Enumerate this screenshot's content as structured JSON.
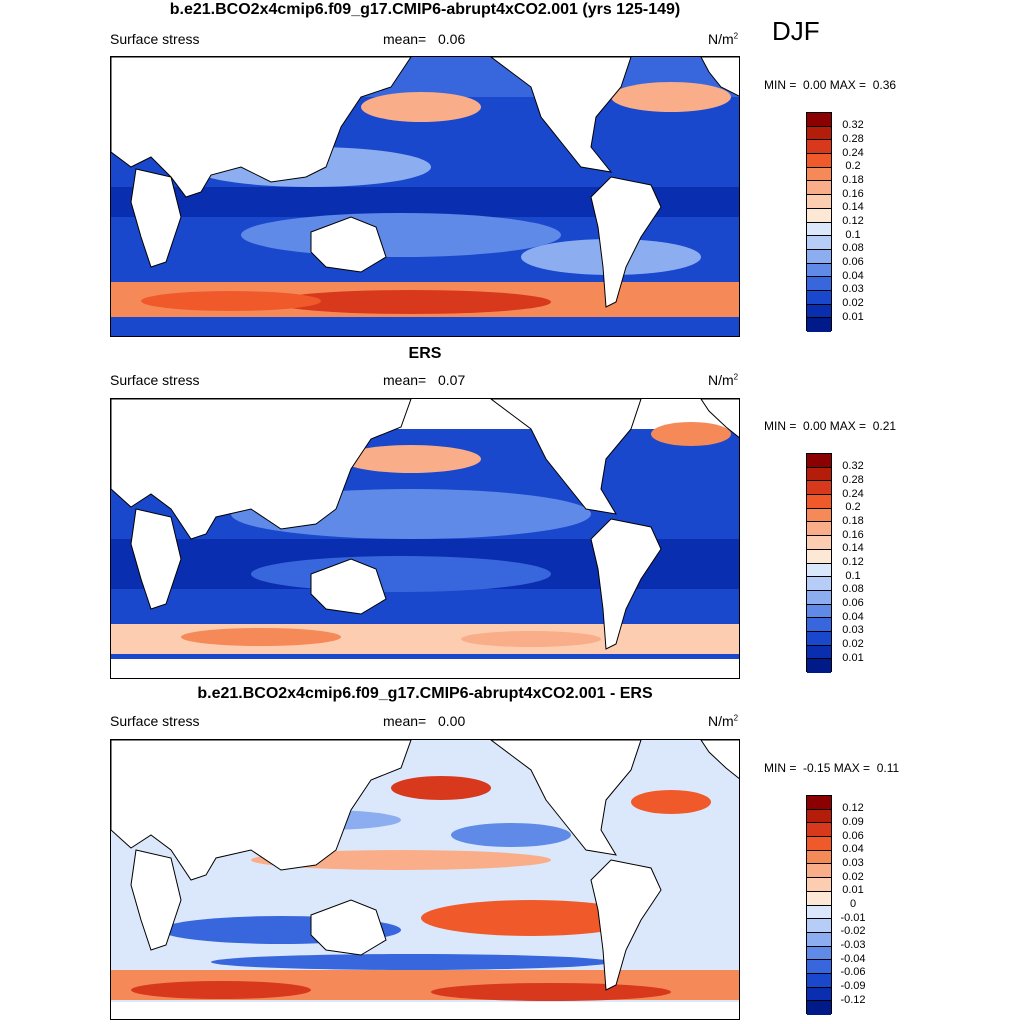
{
  "season": "DJF",
  "panels": [
    {
      "id": "model",
      "title": "b.e21.BCO2x4cmip6.f09_g17.CMIP6-abrupt4xCO2.001 (yrs 125-149)",
      "variable": "Surface stress",
      "mean_label": "mean=",
      "mean_value": "0.06",
      "units": "N/m",
      "units_sup": "2",
      "min_label": "MIN =",
      "min_value": "0.00",
      "max_label": "MAX =",
      "max_value": "0.36",
      "colorbar_labels": [
        "0.32",
        "0.28",
        "0.24",
        "0.2",
        "0.18",
        "0.16",
        "0.14",
        "0.12",
        "0.1",
        "0.08",
        "0.06",
        "0.04",
        "0.03",
        "0.02",
        "0.01"
      ],
      "colorbar_colors": [
        "#8b0000",
        "#b51d0b",
        "#d8391c",
        "#f05a2b",
        "#f58a58",
        "#f9ad88",
        "#fccdb0",
        "#fde8d6",
        "#dbe8fb",
        "#b5cdf7",
        "#8caef0",
        "#5f8ae8",
        "#3867dd",
        "#1a48cc",
        "#0a2eb0",
        "#001a8a"
      ]
    },
    {
      "id": "obs",
      "title": "ERS",
      "variable": "Surface stress",
      "mean_label": "mean=",
      "mean_value": "0.07",
      "units": "N/m",
      "units_sup": "2",
      "min_label": "MIN =",
      "min_value": "0.00",
      "max_label": "MAX =",
      "max_value": "0.21",
      "colorbar_labels": [
        "0.32",
        "0.28",
        "0.24",
        "0.2",
        "0.18",
        "0.16",
        "0.14",
        "0.12",
        "0.1",
        "0.08",
        "0.06",
        "0.04",
        "0.03",
        "0.02",
        "0.01"
      ],
      "colorbar_colors": [
        "#8b0000",
        "#b51d0b",
        "#d8391c",
        "#f05a2b",
        "#f58a58",
        "#f9ad88",
        "#fccdb0",
        "#fde8d6",
        "#dbe8fb",
        "#b5cdf7",
        "#8caef0",
        "#5f8ae8",
        "#3867dd",
        "#1a48cc",
        "#0a2eb0",
        "#001a8a"
      ]
    },
    {
      "id": "diff",
      "title": "b.e21.BCO2x4cmip6.f09_g17.CMIP6-abrupt4xCO2.001 - ERS",
      "variable": "Surface stress",
      "mean_label": "mean=",
      "mean_value": "0.00",
      "units": "N/m",
      "units_sup": "2",
      "min_label": "MIN =",
      "min_value": "-0.15",
      "max_label": "MAX =",
      "max_value": "0.11",
      "colorbar_labels": [
        "0.12",
        "0.09",
        "0.06",
        "0.04",
        "0.03",
        "0.02",
        "0.01",
        "0",
        "-0.01",
        "-0.02",
        "-0.03",
        "-0.04",
        "-0.06",
        "-0.09",
        "-0.12"
      ],
      "colorbar_colors": [
        "#8b0000",
        "#b51d0b",
        "#d8391c",
        "#f05a2b",
        "#f58a58",
        "#f9ad88",
        "#fccdb0",
        "#fde8d6",
        "#dbe8fb",
        "#b5cdf7",
        "#8caef0",
        "#5f8ae8",
        "#3867dd",
        "#1a48cc",
        "#0a2eb0",
        "#001a8a"
      ]
    }
  ]
}
